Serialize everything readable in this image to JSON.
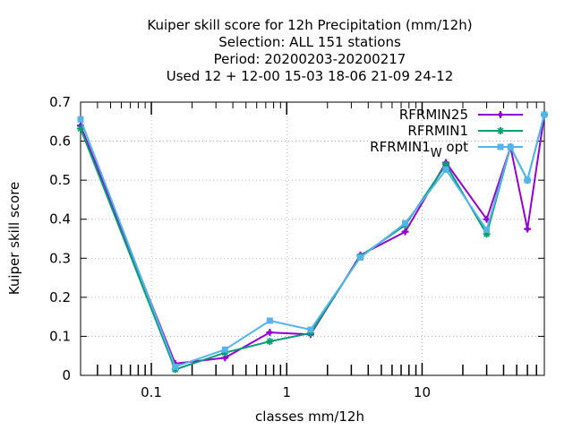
{
  "chart_data": {
    "type": "line",
    "title_lines": [
      "Kuiper skill score  for 12h Precipitation (mm/12h)",
      "Selection: ALL    151 stations",
      "Period: 20200203-20200217",
      "Used  12 + 12-00 15-03 18-06 21-09 24-12"
    ],
    "xlabel": "classes mm/12h",
    "ylabel": "Kuiper skill score",
    "x_scale": "log",
    "xlim": [
      0.03,
      80
    ],
    "ylim": [
      0,
      0.7
    ],
    "x_ticks": [
      0.1,
      1,
      10
    ],
    "x_tick_labels": [
      "0.1",
      "1",
      "10"
    ],
    "x_minor_ticks": [
      0.04,
      0.05,
      0.06,
      0.07,
      0.08,
      0.09,
      0.2,
      0.3,
      0.4,
      0.5,
      0.6,
      0.7,
      0.8,
      0.9,
      2,
      3,
      4,
      5,
      6,
      7,
      8,
      9,
      20,
      30,
      40,
      50,
      60,
      70
    ],
    "y_ticks": [
      0,
      0.1,
      0.2,
      0.3,
      0.4,
      0.5,
      0.6,
      0.7
    ],
    "y_tick_labels": [
      "0",
      "0.1",
      "0.2",
      "0.3",
      "0.4",
      "0.5",
      "0.6",
      "0.7"
    ],
    "grid": true,
    "legend_position": "top-right",
    "legend_entries": [
      {
        "text": "RFRMIN25",
        "sub": "",
        "suffix": ""
      },
      {
        "text": "RFRMIN1",
        "sub": "",
        "suffix": ""
      },
      {
        "text": "RFRMIN1",
        "sub": "W",
        "suffix": " opt"
      }
    ],
    "x": [
      0.03,
      0.15,
      0.35,
      0.75,
      1.5,
      3.5,
      7.5,
      15,
      30,
      45,
      60,
      80
    ],
    "series": [
      {
        "name": "RFRMIN25",
        "color": "#9400d3",
        "marker": "plus",
        "values": [
          0.64,
          0.03,
          0.045,
          0.11,
          0.105,
          0.308,
          0.368,
          0.545,
          0.4,
          0.585,
          0.375,
          0.668
        ]
      },
      {
        "name": "RFRMIN1",
        "color": "#009e73",
        "marker": "star",
        "values": [
          0.632,
          0.015,
          0.058,
          0.087,
          0.108,
          0.305,
          0.385,
          0.54,
          0.362,
          0.585,
          0.5,
          0.668
        ]
      },
      {
        "name": "RFRMIN1 W opt",
        "color": "#56b4e9",
        "marker": "square",
        "values": [
          0.656,
          0.022,
          0.066,
          0.14,
          0.117,
          0.302,
          0.39,
          0.527,
          0.373,
          0.585,
          0.5,
          0.668
        ]
      }
    ]
  }
}
